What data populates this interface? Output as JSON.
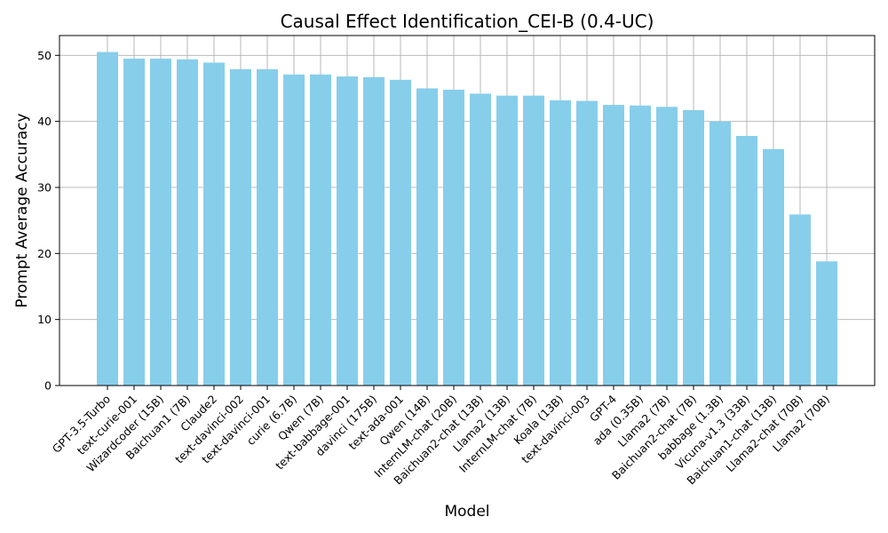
{
  "chart_data": {
    "type": "bar",
    "title": "Causal Effect Identification_CEI-B (0.4-UC)",
    "xlabel": "Model",
    "ylabel": "Prompt Average Accuracy",
    "ylim": [
      0,
      53
    ],
    "yticks": [
      0,
      10,
      20,
      30,
      40,
      50
    ],
    "grid": true,
    "bar_color": "#87ceeb",
    "categories": [
      "GPT-3.5-Turbo",
      "text-curie-001",
      "Wizardcoder (15B)",
      "Baichuan1 (7B)",
      "Claude2",
      "text-davinci-002",
      "text-davinci-001",
      "curie (6.7B)",
      "Qwen (7B)",
      "text-babbage-001",
      "davinci (175B)",
      "text-ada-001",
      "Qwen (14B)",
      "InternLM-chat (20B)",
      "Baichuan2-chat (13B)",
      "Llama2 (13B)",
      "InternLM-chat (7B)",
      "Koala (13B)",
      "text-davinci-003",
      "GPT-4",
      "ada (0.35B)",
      "Llama2 (7B)",
      "Baichuan2-chat (7B)",
      "babbage (1.3B)",
      "Vicuna-v1.3 (33B)",
      "Baichuan1-chat (13B)",
      "Llama2-chat (70B)",
      "Llama2 (70B)"
    ],
    "values": [
      50.5,
      49.5,
      49.5,
      49.4,
      48.9,
      47.9,
      47.9,
      47.1,
      47.1,
      46.8,
      46.7,
      46.3,
      45.0,
      44.8,
      44.2,
      43.9,
      43.9,
      43.2,
      43.1,
      42.5,
      42.4,
      42.2,
      41.7,
      40.0,
      37.8,
      35.8,
      25.9,
      18.8
    ]
  }
}
